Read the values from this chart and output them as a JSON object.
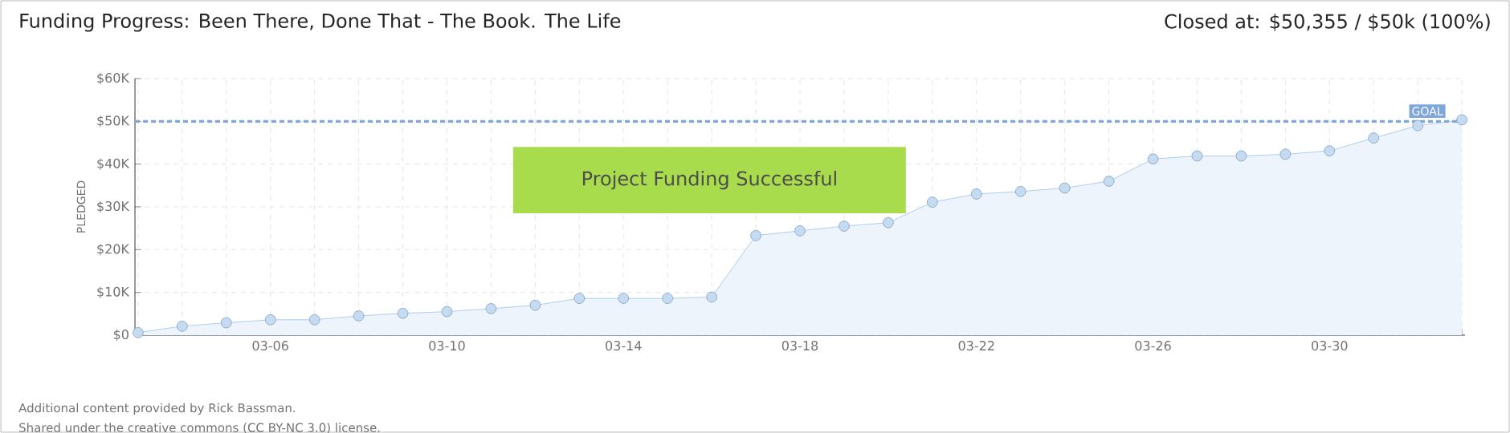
{
  "chart_data": {
    "type": "area",
    "title": "Funding Progress: Been There, Done That  - The Book.  The Life",
    "subtitle": "Closed at: $50,355 / $50k (100%)",
    "ylabel": "PLEDGED",
    "categories": [
      null,
      null,
      null,
      "03-06",
      null,
      null,
      null,
      "03-10",
      null,
      null,
      null,
      "03-14",
      null,
      null,
      null,
      "03-18",
      null,
      null,
      null,
      "03-22",
      null,
      null,
      null,
      "03-26",
      null,
      null,
      null,
      "03-30",
      null,
      null,
      null
    ],
    "series": [
      {
        "color": "#9cc3ea",
        "values": [
          600,
          2100,
          2900,
          3600,
          3600,
          4500,
          5100,
          5500,
          6200,
          7000,
          8600,
          8600,
          8600,
          8900,
          23300,
          24400,
          25500,
          26300,
          31100,
          33000,
          33600,
          34400,
          36000,
          41200,
          41900,
          41900,
          42300,
          43100,
          46100,
          49000,
          50355
        ]
      }
    ],
    "ylim": [
      0,
      60000
    ],
    "yticks": [
      {
        "value": 0,
        "label": "$0"
      },
      {
        "value": 10000,
        "label": "$10K"
      },
      {
        "value": 20000,
        "label": "$20K"
      },
      {
        "value": 30000,
        "label": "$30K"
      },
      {
        "value": 40000,
        "label": "$40K"
      },
      {
        "value": 50000,
        "label": "$50K"
      },
      {
        "value": 60000,
        "label": "$60K"
      }
    ],
    "grid": true,
    "marker": "circle",
    "line_style": "solid",
    "ref_lines": [
      {
        "axis": "y",
        "value": 50000,
        "label": "GOAL",
        "color": "#7fa7d9",
        "line_style": "dashed"
      }
    ],
    "annotations": [
      "Project Funding Successful",
      "Additional content provided by Rick Bassman.",
      "Shared under the creative commons (CC BY-NC 3.0) license."
    ]
  }
}
